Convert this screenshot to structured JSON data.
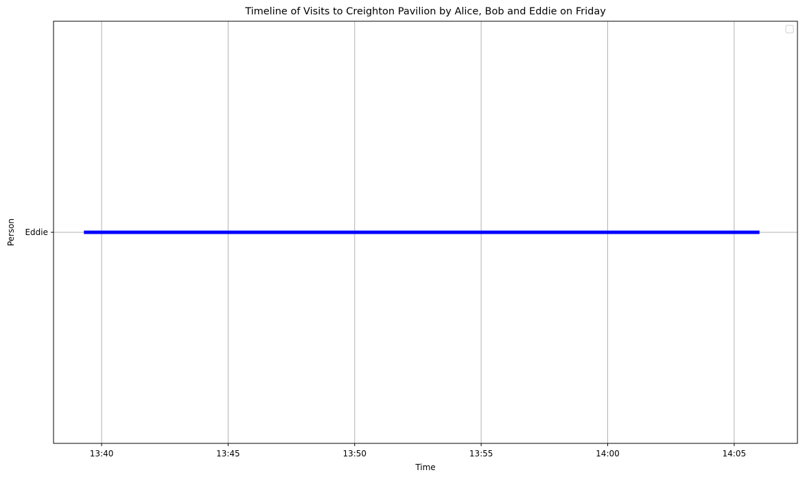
{
  "chart_data": {
    "type": "timeline",
    "title": "Timeline of Visits to Creighton Pavilion by Alice, Bob and Eddie on Friday",
    "xlabel": "Time",
    "ylabel": "Person",
    "categories": [
      "Eddie"
    ],
    "x_ticks": [
      "13:40",
      "13:45",
      "13:50",
      "13:55",
      "14:00",
      "14:05"
    ],
    "x_tick_minutes": [
      820,
      825,
      830,
      835,
      840,
      845
    ],
    "xlim_minutes": [
      818.1,
      847.5
    ],
    "grid": true,
    "legend": {
      "placement": "top-right",
      "entries": []
    },
    "series": [
      {
        "name": "Eddie",
        "category": "Eddie",
        "start": "13:39",
        "end": "14:06",
        "start_minutes": 819.3,
        "end_minutes": 846.0,
        "color": "#0000ff"
      }
    ]
  }
}
